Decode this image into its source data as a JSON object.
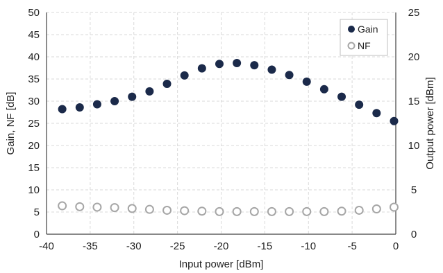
{
  "chart_data": {
    "type": "scatter",
    "xlabel": "Input power [dBm]",
    "ylabel_left": "Gain, NF [dB]",
    "ylabel_right": "Output power [dBm]",
    "xlim": [
      -40,
      0
    ],
    "ylim_left": [
      0,
      50
    ],
    "ylim_right": [
      0,
      25
    ],
    "x_ticks": [
      "-40",
      "-35",
      "-30",
      "-25",
      "-20",
      "-15",
      "-10",
      "-5",
      "0"
    ],
    "y_left_ticks": [
      "0",
      "5",
      "10",
      "15",
      "20",
      "25",
      "30",
      "35",
      "40",
      "45",
      "50"
    ],
    "y_right_ticks": [
      "0",
      "5",
      "10",
      "15",
      "20",
      "25"
    ],
    "grid": true,
    "legend_position": "top-right",
    "series": [
      {
        "name": "Gain",
        "axis": "left",
        "marker": "filled-circle",
        "color": "#1b2a4a",
        "x": [
          -38.2,
          -36.2,
          -34.2,
          -32.2,
          -30.2,
          -28.2,
          -26.2,
          -24.2,
          -22.2,
          -20.2,
          -18.2,
          -16.2,
          -14.2,
          -12.2,
          -10.2,
          -8.2,
          -6.2,
          -4.2,
          -2.2,
          -0.2
        ],
        "y": [
          28.2,
          28.6,
          29.3,
          30.0,
          31.0,
          32.2,
          33.9,
          35.8,
          37.4,
          38.4,
          38.6,
          38.1,
          37.1,
          35.9,
          34.4,
          32.7,
          31.0,
          29.2,
          27.3,
          25.5
        ]
      },
      {
        "name": "NF",
        "axis": "left",
        "marker": "open-circle",
        "color": "#a6a6a6",
        "x": [
          -38.2,
          -36.2,
          -34.2,
          -32.2,
          -30.2,
          -28.2,
          -26.2,
          -24.2,
          -22.2,
          -20.2,
          -18.2,
          -16.2,
          -14.2,
          -12.2,
          -10.2,
          -8.2,
          -6.2,
          -4.2,
          -2.2,
          -0.2
        ],
        "y": [
          6.4,
          6.2,
          6.1,
          6.0,
          5.8,
          5.6,
          5.4,
          5.3,
          5.2,
          5.1,
          5.1,
          5.1,
          5.1,
          5.1,
          5.1,
          5.1,
          5.2,
          5.4,
          5.7,
          6.1
        ]
      }
    ]
  }
}
